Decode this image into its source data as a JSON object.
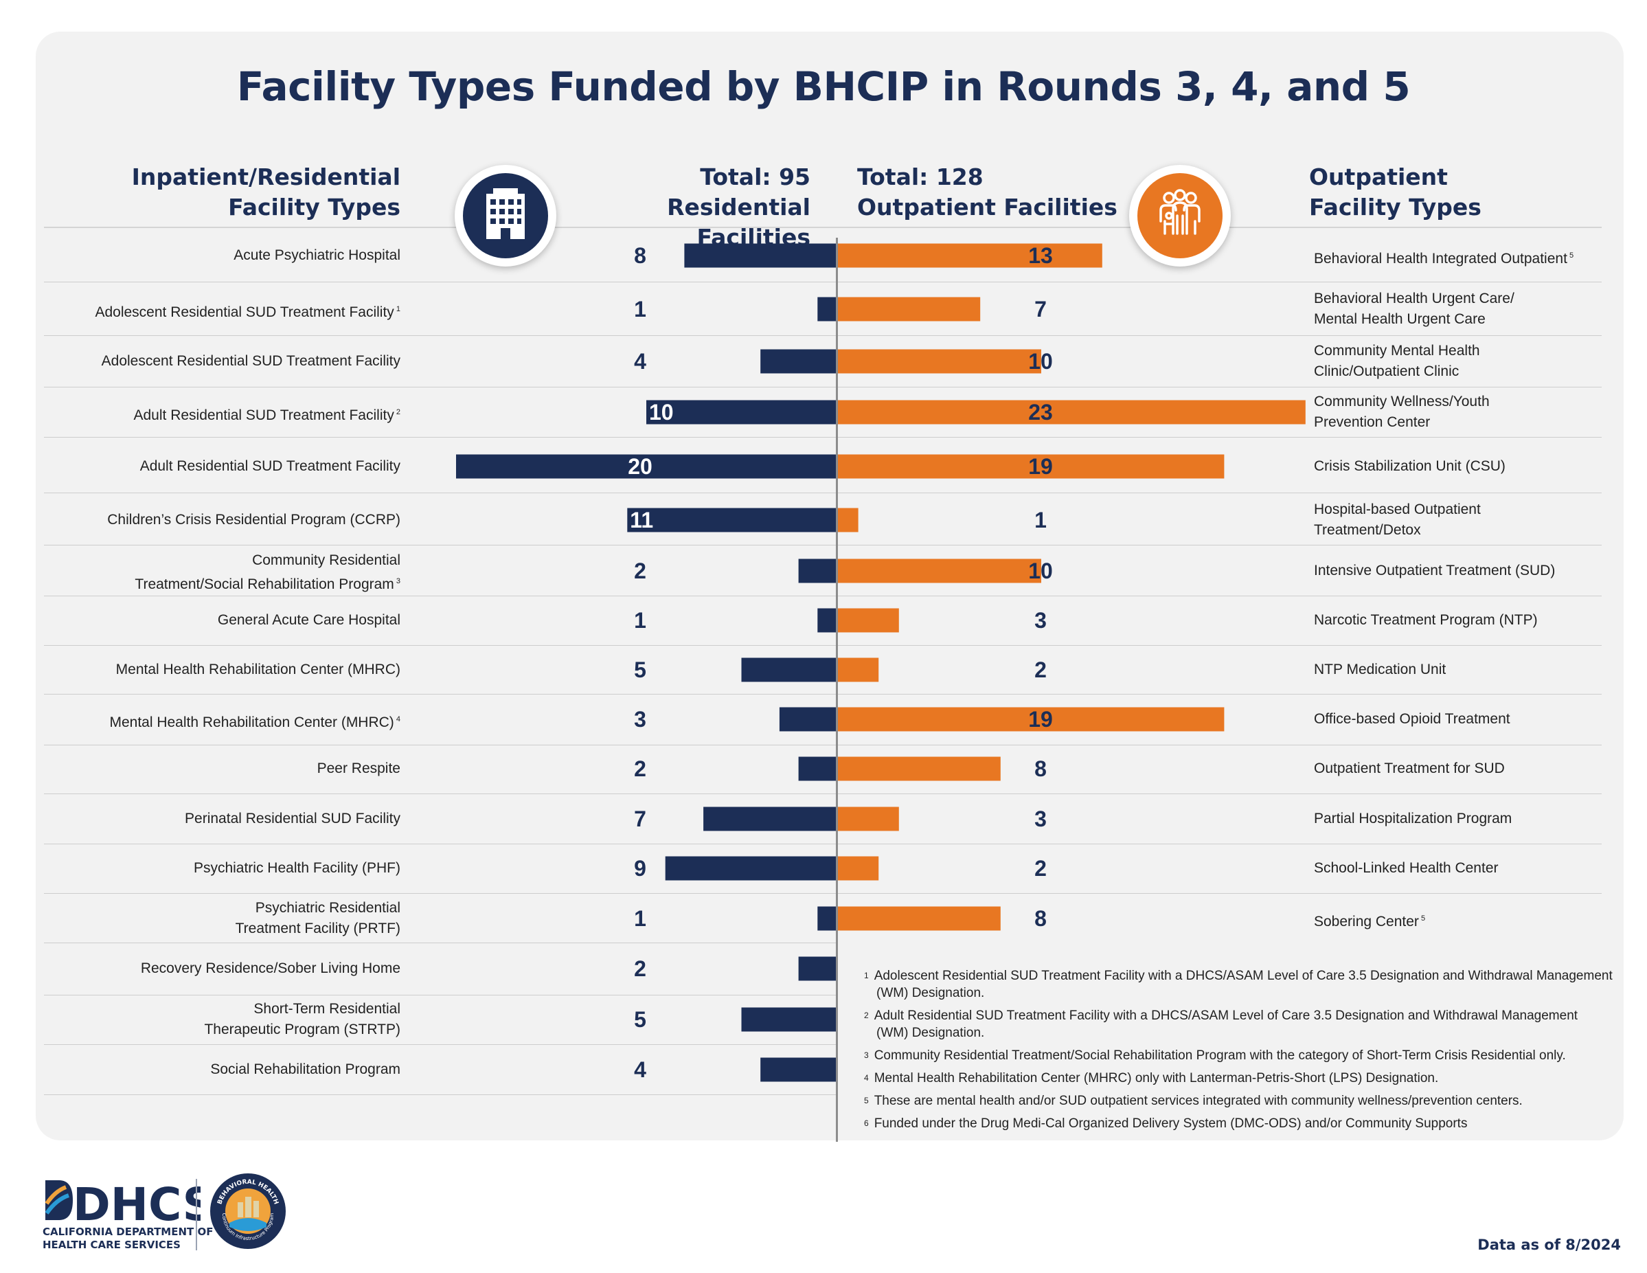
{
  "title": "Facility Types Funded by BHCIP in Rounds 3, 4, and 5",
  "headers": {
    "left_line1": "Inpatient/Residential",
    "left_line2": "Facility Types",
    "total_left_line1": "Total: 95",
    "total_left_line2": "Residential Facilities",
    "total_right_line1": "Total: 128",
    "total_right_line2": "Outpatient Facilities",
    "right_line1": "Outpatient",
    "right_line2": "Facility Types"
  },
  "icons": {
    "left": "building-icon",
    "right": "people-icon"
  },
  "colors": {
    "residential": "#1c2e56",
    "outpatient": "#e87722",
    "title": "#1c2e56",
    "panel": "#f2f2f2"
  },
  "residential_labels": [
    {
      "text": "Acute Psychiatric Hospital",
      "note": ""
    },
    {
      "text": "Adolescent Residential SUD Treatment Facility",
      "note": "1"
    },
    {
      "text": "Adolescent Residential SUD Treatment Facility",
      "note": ""
    },
    {
      "text": "Adult Residential SUD Treatment Facility",
      "note": "2"
    },
    {
      "text": "Adult Residential SUD Treatment Facility",
      "note": ""
    },
    {
      "text": "Children’s Crisis Residential Program (CCRP)",
      "note": ""
    },
    {
      "text": "Community Residential Treatment/Social Rehabilitation Program",
      "note": "3"
    },
    {
      "text": "General Acute Care Hospital",
      "note": ""
    },
    {
      "text": "Mental Health Rehabilitation Center (MHRC)",
      "note": ""
    },
    {
      "text": "Mental Health Rehabilitation Center (MHRC)",
      "note": "4"
    },
    {
      "text": "Peer Respite",
      "note": ""
    },
    {
      "text": "Perinatal Residential SUD Facility",
      "note": ""
    },
    {
      "text": "Psychiatric Health Facility (PHF)",
      "note": ""
    },
    {
      "text": "Psychiatric Residential Treatment Facility (PRTF)",
      "note": ""
    },
    {
      "text": "Recovery Residence/Sober Living Home",
      "note": ""
    },
    {
      "text": "Short-Term Residential Therapeutic Program (STRTP)",
      "note": ""
    },
    {
      "text": "Social Rehabilitation Program",
      "note": ""
    }
  ],
  "outpatient_labels": [
    {
      "text": "Behavioral Health Integrated Outpatient",
      "note": "5"
    },
    {
      "text": "Behavioral Health Urgent Care/ Mental Health Urgent Care",
      "note": ""
    },
    {
      "text": "Community Mental Health Clinic/Outpatient Clinic",
      "note": ""
    },
    {
      "text": "Community Wellness/Youth Prevention Center",
      "note": ""
    },
    {
      "text": "Crisis Stabilization Unit (CSU)",
      "note": ""
    },
    {
      "text": "Hospital-based Outpatient Treatment/Detox",
      "note": ""
    },
    {
      "text": "Intensive Outpatient Treatment (SUD)",
      "note": ""
    },
    {
      "text": "Narcotic Treatment Program (NTP)",
      "note": ""
    },
    {
      "text": "NTP Medication Unit",
      "note": ""
    },
    {
      "text": "Office-based Opioid Treatment",
      "note": ""
    },
    {
      "text": "Outpatient Treatment for SUD",
      "note": ""
    },
    {
      "text": "Partial Hospitalization Program",
      "note": ""
    },
    {
      "text": "School-Linked Health Center",
      "note": ""
    },
    {
      "text": "Sobering Center",
      "note": "5"
    }
  ],
  "chart_data": {
    "type": "bar",
    "orientation": "horizontal-diverging",
    "series": [
      {
        "name": "Residential Facilities",
        "categories": [
          "Acute Psychiatric Hospital",
          "Adolescent Residential SUD Treatment Facility",
          "Adolescent Residential SUD Treatment Facility",
          "Adult Residential SUD Treatment Facility",
          "Adult Residential SUD Treatment Facility",
          "Children’s Crisis Residential Program (CCRP)",
          "Community Residential Treatment/Social Rehabilitation Program",
          "General Acute Care Hospital",
          "Mental Health Rehabilitation Center (MHRC)",
          "Mental Health Rehabilitation Center (MHRC)",
          "Peer Respite",
          "Perinatal Residential SUD Facility",
          "Psychiatric Health Facility (PHF)",
          "Psychiatric Residential Treatment Facility (PRTF)",
          "Recovery Residence/Sober Living Home",
          "Short-Term Residential Therapeutic Program (STRTP)",
          "Social Rehabilitation Program"
        ],
        "values": [
          8,
          1,
          4,
          10,
          20,
          11,
          2,
          1,
          5,
          3,
          2,
          7,
          9,
          1,
          2,
          5,
          4
        ]
      },
      {
        "name": "Outpatient Facilities",
        "categories": [
          "Behavioral Health Integrated Outpatient",
          "Behavioral Health Urgent Care/ Mental Health Urgent Care",
          "Community Mental Health Clinic/Outpatient Clinic",
          "Community Wellness/Youth Prevention Center",
          "Crisis Stabilization Unit (CSU)",
          "Hospital-based Outpatient Treatment/Detox",
          "Intensive Outpatient Treatment (SUD)",
          "Narcotic Treatment Program (NTP)",
          "NTP Medication Unit",
          "Office-based Opioid Treatment",
          "Outpatient Treatment for SUD",
          "Partial Hospitalization Program",
          "School-Linked Health Center",
          "Sobering Center"
        ],
        "values": [
          13,
          7,
          10,
          23,
          19,
          1,
          10,
          3,
          2,
          19,
          8,
          3,
          2,
          8
        ]
      }
    ]
  },
  "footnotes": [
    {
      "mark": "1",
      "text": "Adolescent Residential SUD Treatment Facility with a DHCS/ASAM Level of Care 3.5 Designation and Withdrawal Management (WM) Designation."
    },
    {
      "mark": "2",
      "text": "Adult Residential SUD Treatment Facility with a DHCS/ASAM Level of Care 3.5 Designation and Withdrawal Management (WM) Designation."
    },
    {
      "mark": "3",
      "text": "Community Residential Treatment/Social Rehabilitation Program with the category of Short-Term Crisis Residential only."
    },
    {
      "mark": "4",
      "text": "Mental Health Rehabilitation Center (MHRC) only with Lanterman-Petris-Short (LPS) Designation."
    },
    {
      "mark": "5",
      "text": "These are mental health and/or SUD outpatient services integrated with community wellness/prevention centers."
    },
    {
      "mark": "6",
      "text": "Funded under the Drug Medi-Cal Organized Delivery System (DMC-ODS) and/or Community Supports"
    }
  ],
  "footer": {
    "logo_text": "DHCS",
    "logo_sub_line1": "CALIFORNIA DEPARTMENT OF",
    "logo_sub_line2": "HEALTH CARE SERVICES",
    "seal_top": "BEHAVIORAL HEALTH",
    "seal_bottom": "Continuum Infrastructure Program",
    "data_as_of": "Data as of 8/2024"
  }
}
